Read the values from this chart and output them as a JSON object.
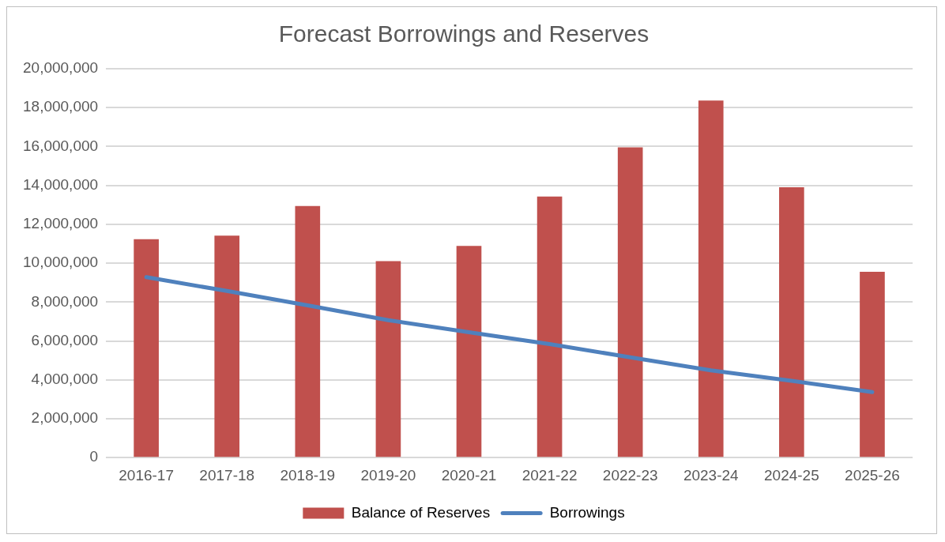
{
  "chart_data": {
    "type": "bar",
    "title": "Forecast Borrowings and Reserves",
    "categories": [
      "2016-17",
      "2017-18",
      "2018-19",
      "2019-20",
      "2020-21",
      "2021-22",
      "2022-23",
      "2023-24",
      "2024-25",
      "2025-26"
    ],
    "series": [
      {
        "name": "Balance of Reserves",
        "color": "#c0504d",
        "values": [
          11230000,
          11420000,
          12940000,
          10110000,
          10890000,
          13430000,
          15960000,
          18360000,
          13910000,
          9560000
        ]
      },
      {
        "name": "Borrowings",
        "type": "line",
        "color": "#4f81bd",
        "values": [
          9280000,
          8570000,
          7830000,
          7070000,
          6450000,
          5840000,
          5160000,
          4490000,
          3950000,
          3370000
        ]
      }
    ],
    "ylim": [
      0,
      20000000
    ],
    "yticks": [
      0,
      {
        "value": 2000000,
        "label": "2,000,000"
      },
      {
        "value": 4000000,
        "label": "4,000,000"
      },
      {
        "value": 6000000,
        "label": "6,000,000"
      },
      {
        "value": 8000000,
        "label": "8,000,000"
      },
      {
        "value": 10000000,
        "label": "10,000,000"
      },
      {
        "value": 12000000,
        "label": "12,000,000"
      },
      {
        "value": 14000000,
        "label": "14,000,000"
      },
      {
        "value": 16000000,
        "label": "16,000,000"
      },
      {
        "value": 18000000,
        "label": "18,000,000"
      },
      {
        "value": 20000000,
        "label": "20,000,000"
      }
    ],
    "grid": "y",
    "legend": "bottom",
    "marker": "none"
  }
}
